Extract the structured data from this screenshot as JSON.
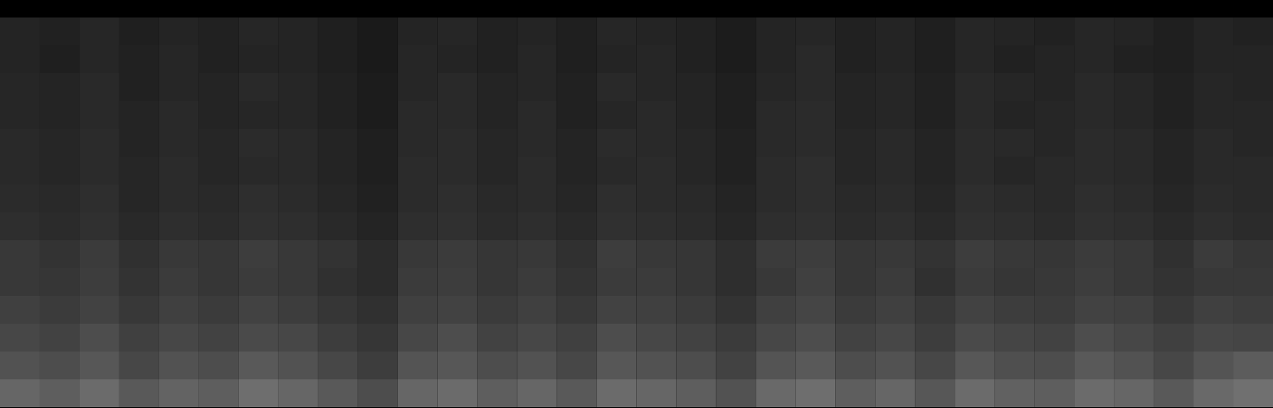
{
  "chart_data": {
    "type": "heatmap",
    "tick_labels": false,
    "zlim": [
      0,
      1
    ],
    "cells": [
      [
        0.14,
        0.13,
        0.15,
        0.12,
        0.14,
        0.13,
        0.15,
        0.14,
        0.12,
        0.1,
        0.14,
        0.15,
        0.13,
        0.14,
        0.12,
        0.15,
        0.14,
        0.13,
        0.11,
        0.14,
        0.15,
        0.13,
        0.14,
        0.12,
        0.15,
        0.14,
        0.13,
        0.15,
        0.14,
        0.12,
        0.14,
        0.13
      ],
      [
        0.14,
        0.12,
        0.15,
        0.13,
        0.15,
        0.13,
        0.14,
        0.14,
        0.12,
        0.1,
        0.15,
        0.14,
        0.13,
        0.15,
        0.12,
        0.14,
        0.15,
        0.13,
        0.11,
        0.14,
        0.16,
        0.13,
        0.14,
        0.12,
        0.15,
        0.13,
        0.14,
        0.15,
        0.13,
        0.12,
        0.14,
        0.14
      ],
      [
        0.15,
        0.14,
        0.16,
        0.13,
        0.15,
        0.14,
        0.16,
        0.15,
        0.13,
        0.11,
        0.15,
        0.16,
        0.14,
        0.15,
        0.13,
        0.16,
        0.15,
        0.14,
        0.12,
        0.15,
        0.16,
        0.14,
        0.15,
        0.13,
        0.16,
        0.15,
        0.14,
        0.16,
        0.15,
        0.13,
        0.15,
        0.14
      ],
      [
        0.15,
        0.14,
        0.16,
        0.14,
        0.16,
        0.14,
        0.15,
        0.15,
        0.13,
        0.11,
        0.16,
        0.16,
        0.14,
        0.16,
        0.13,
        0.15,
        0.16,
        0.14,
        0.12,
        0.16,
        0.17,
        0.14,
        0.15,
        0.13,
        0.16,
        0.14,
        0.15,
        0.16,
        0.15,
        0.13,
        0.15,
        0.15
      ],
      [
        0.16,
        0.15,
        0.17,
        0.14,
        0.16,
        0.15,
        0.17,
        0.16,
        0.14,
        0.12,
        0.16,
        0.17,
        0.15,
        0.16,
        0.14,
        0.17,
        0.16,
        0.15,
        0.13,
        0.16,
        0.17,
        0.15,
        0.16,
        0.14,
        0.17,
        0.16,
        0.15,
        0.17,
        0.16,
        0.14,
        0.16,
        0.15
      ],
      [
        0.16,
        0.15,
        0.17,
        0.15,
        0.17,
        0.15,
        0.16,
        0.16,
        0.14,
        0.12,
        0.17,
        0.17,
        0.15,
        0.17,
        0.14,
        0.16,
        0.17,
        0.15,
        0.13,
        0.17,
        0.18,
        0.15,
        0.16,
        0.14,
        0.17,
        0.15,
        0.16,
        0.17,
        0.16,
        0.14,
        0.16,
        0.16
      ],
      [
        0.17,
        0.16,
        0.18,
        0.15,
        0.17,
        0.16,
        0.18,
        0.17,
        0.15,
        0.13,
        0.17,
        0.18,
        0.16,
        0.17,
        0.15,
        0.18,
        0.17,
        0.16,
        0.14,
        0.17,
        0.18,
        0.16,
        0.17,
        0.15,
        0.18,
        0.17,
        0.16,
        0.18,
        0.17,
        0.15,
        0.17,
        0.16
      ],
      [
        0.18,
        0.17,
        0.19,
        0.16,
        0.18,
        0.17,
        0.19,
        0.18,
        0.16,
        0.14,
        0.18,
        0.19,
        0.17,
        0.18,
        0.16,
        0.19,
        0.18,
        0.17,
        0.15,
        0.18,
        0.19,
        0.17,
        0.18,
        0.16,
        0.19,
        0.18,
        0.17,
        0.19,
        0.18,
        0.16,
        0.18,
        0.17
      ],
      [
        0.22,
        0.2,
        0.23,
        0.19,
        0.22,
        0.21,
        0.24,
        0.22,
        0.2,
        0.17,
        0.22,
        0.23,
        0.21,
        0.22,
        0.19,
        0.24,
        0.22,
        0.21,
        0.18,
        0.23,
        0.24,
        0.21,
        0.22,
        0.2,
        0.24,
        0.22,
        0.21,
        0.23,
        0.22,
        0.19,
        0.23,
        0.21
      ],
      [
        0.22,
        0.21,
        0.24,
        0.2,
        0.23,
        0.21,
        0.23,
        0.22,
        0.19,
        0.17,
        0.23,
        0.24,
        0.21,
        0.23,
        0.2,
        0.23,
        0.23,
        0.21,
        0.18,
        0.22,
        0.25,
        0.21,
        0.23,
        0.19,
        0.23,
        0.21,
        0.22,
        0.24,
        0.22,
        0.2,
        0.22,
        0.22
      ],
      [
        0.25,
        0.23,
        0.26,
        0.22,
        0.25,
        0.23,
        0.26,
        0.24,
        0.21,
        0.19,
        0.25,
        0.26,
        0.23,
        0.25,
        0.22,
        0.26,
        0.25,
        0.23,
        0.2,
        0.25,
        0.27,
        0.23,
        0.25,
        0.22,
        0.26,
        0.24,
        0.23,
        0.26,
        0.25,
        0.22,
        0.25,
        0.24
      ],
      [
        0.28,
        0.26,
        0.3,
        0.25,
        0.28,
        0.26,
        0.29,
        0.28,
        0.24,
        0.21,
        0.28,
        0.3,
        0.26,
        0.28,
        0.25,
        0.3,
        0.28,
        0.26,
        0.23,
        0.28,
        0.3,
        0.26,
        0.28,
        0.24,
        0.29,
        0.27,
        0.26,
        0.3,
        0.28,
        0.25,
        0.28,
        0.27
      ],
      [
        0.32,
        0.3,
        0.34,
        0.28,
        0.32,
        0.3,
        0.35,
        0.32,
        0.28,
        0.24,
        0.33,
        0.34,
        0.3,
        0.32,
        0.28,
        0.34,
        0.32,
        0.3,
        0.26,
        0.33,
        0.35,
        0.3,
        0.32,
        0.28,
        0.34,
        0.31,
        0.3,
        0.35,
        0.32,
        0.28,
        0.33,
        0.36
      ],
      [
        0.4,
        0.37,
        0.42,
        0.35,
        0.39,
        0.37,
        0.43,
        0.4,
        0.35,
        0.3,
        0.4,
        0.42,
        0.37,
        0.4,
        0.35,
        0.42,
        0.4,
        0.37,
        0.32,
        0.41,
        0.43,
        0.37,
        0.4,
        0.34,
        0.42,
        0.38,
        0.37,
        0.42,
        0.4,
        0.35,
        0.41,
        0.44
      ]
    ]
  }
}
